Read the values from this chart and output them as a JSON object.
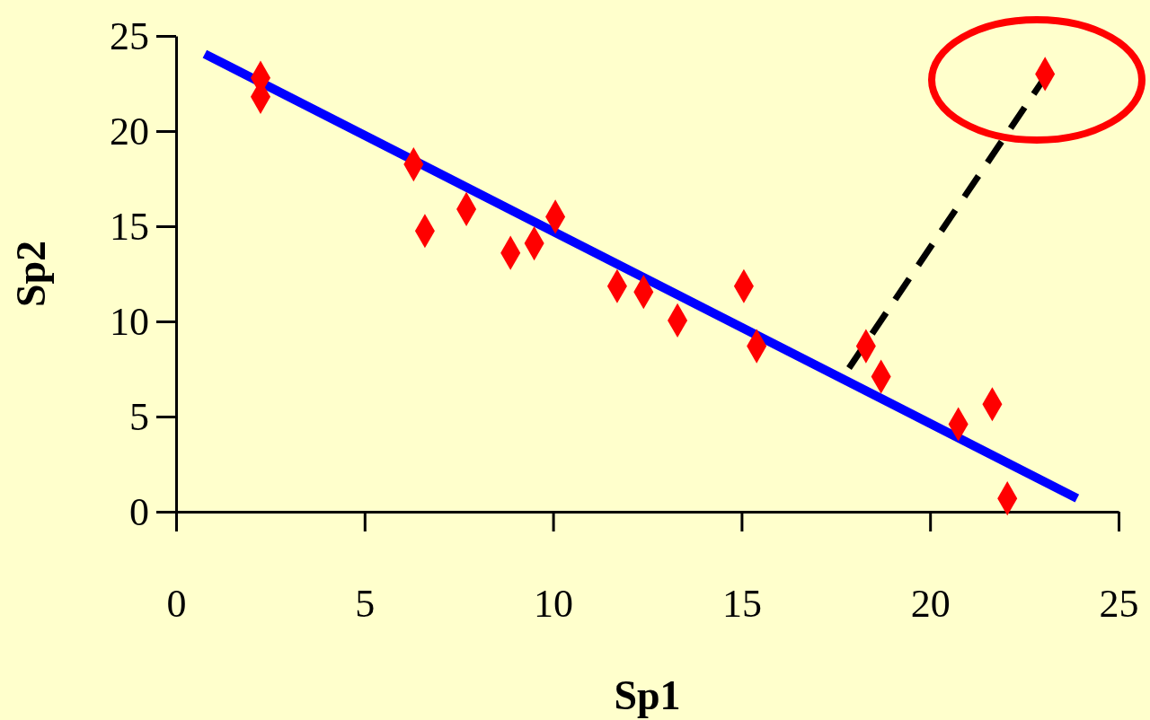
{
  "chart_data": {
    "type": "scatter",
    "xlabel": "Sp1",
    "ylabel": "Sp2",
    "xlim": [
      0,
      25
    ],
    "ylim": [
      0,
      25
    ],
    "xticks": [
      0,
      5,
      10,
      15,
      20,
      25
    ],
    "yticks": [
      0,
      5,
      10,
      15,
      20,
      25
    ],
    "grid": false,
    "marker": "diamond",
    "series": [
      {
        "color": "#ff0000",
        "x": [
          2.24,
          2.24,
          6.3,
          6.6,
          7.7,
          8.87,
          9.5,
          10.06,
          11.7,
          12.4,
          13.3,
          15.06,
          15.4,
          18.3,
          18.7,
          20.75,
          21.65,
          22.05,
          23.05
        ],
        "values": [
          22.8,
          21.8,
          18.25,
          14.75,
          15.9,
          13.6,
          14.1,
          15.5,
          11.85,
          11.55,
          10.05,
          11.85,
          8.7,
          8.7,
          7.1,
          4.6,
          5.65,
          0.7,
          23.0
        ]
      },
      {
        "type": "line",
        "color": "#0000ff",
        "line_style": "solid",
        "marker": "none",
        "x": [
          0.76,
          23.9
        ],
        "values": [
          24.05,
          0.7
        ]
      },
      {
        "type": "line",
        "color": "#000000",
        "line_style": "dashed",
        "marker": "none",
        "x": [
          17.85,
          22.97
        ],
        "values": [
          7.55,
          22.6
        ]
      }
    ]
  }
}
